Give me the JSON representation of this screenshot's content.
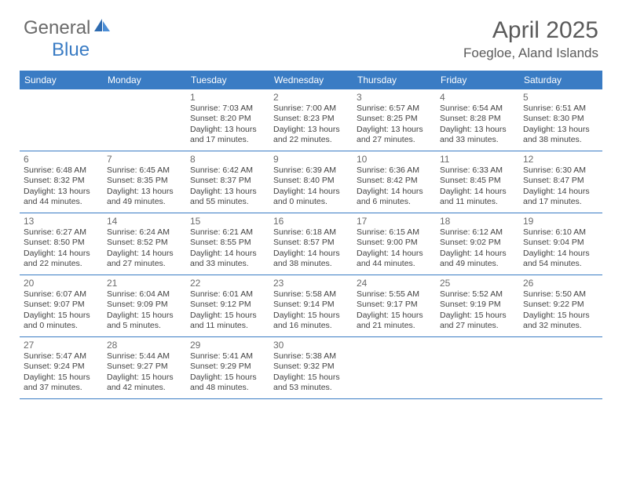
{
  "logo": {
    "brand1": "General",
    "brand2": "Blue"
  },
  "title": "April 2025",
  "location": "Foegloe, Aland Islands",
  "colors": {
    "header_bg": "#3a7cc4",
    "header_text": "#ffffff",
    "divider": "#3a7cc4",
    "daynum": "#6a6a6a",
    "body_text": "#424242",
    "brand_gray": "#6a6a6a",
    "brand_blue": "#3a7cc4"
  },
  "daynames": [
    "Sunday",
    "Monday",
    "Tuesday",
    "Wednesday",
    "Thursday",
    "Friday",
    "Saturday"
  ],
  "weeks": [
    [
      null,
      null,
      {
        "n": "1",
        "sr": "Sunrise: 7:03 AM",
        "ss": "Sunset: 8:20 PM",
        "dl": "Daylight: 13 hours and 17 minutes."
      },
      {
        "n": "2",
        "sr": "Sunrise: 7:00 AM",
        "ss": "Sunset: 8:23 PM",
        "dl": "Daylight: 13 hours and 22 minutes."
      },
      {
        "n": "3",
        "sr": "Sunrise: 6:57 AM",
        "ss": "Sunset: 8:25 PM",
        "dl": "Daylight: 13 hours and 27 minutes."
      },
      {
        "n": "4",
        "sr": "Sunrise: 6:54 AM",
        "ss": "Sunset: 8:28 PM",
        "dl": "Daylight: 13 hours and 33 minutes."
      },
      {
        "n": "5",
        "sr": "Sunrise: 6:51 AM",
        "ss": "Sunset: 8:30 PM",
        "dl": "Daylight: 13 hours and 38 minutes."
      }
    ],
    [
      {
        "n": "6",
        "sr": "Sunrise: 6:48 AM",
        "ss": "Sunset: 8:32 PM",
        "dl": "Daylight: 13 hours and 44 minutes."
      },
      {
        "n": "7",
        "sr": "Sunrise: 6:45 AM",
        "ss": "Sunset: 8:35 PM",
        "dl": "Daylight: 13 hours and 49 minutes."
      },
      {
        "n": "8",
        "sr": "Sunrise: 6:42 AM",
        "ss": "Sunset: 8:37 PM",
        "dl": "Daylight: 13 hours and 55 minutes."
      },
      {
        "n": "9",
        "sr": "Sunrise: 6:39 AM",
        "ss": "Sunset: 8:40 PM",
        "dl": "Daylight: 14 hours and 0 minutes."
      },
      {
        "n": "10",
        "sr": "Sunrise: 6:36 AM",
        "ss": "Sunset: 8:42 PM",
        "dl": "Daylight: 14 hours and 6 minutes."
      },
      {
        "n": "11",
        "sr": "Sunrise: 6:33 AM",
        "ss": "Sunset: 8:45 PM",
        "dl": "Daylight: 14 hours and 11 minutes."
      },
      {
        "n": "12",
        "sr": "Sunrise: 6:30 AM",
        "ss": "Sunset: 8:47 PM",
        "dl": "Daylight: 14 hours and 17 minutes."
      }
    ],
    [
      {
        "n": "13",
        "sr": "Sunrise: 6:27 AM",
        "ss": "Sunset: 8:50 PM",
        "dl": "Daylight: 14 hours and 22 minutes."
      },
      {
        "n": "14",
        "sr": "Sunrise: 6:24 AM",
        "ss": "Sunset: 8:52 PM",
        "dl": "Daylight: 14 hours and 27 minutes."
      },
      {
        "n": "15",
        "sr": "Sunrise: 6:21 AM",
        "ss": "Sunset: 8:55 PM",
        "dl": "Daylight: 14 hours and 33 minutes."
      },
      {
        "n": "16",
        "sr": "Sunrise: 6:18 AM",
        "ss": "Sunset: 8:57 PM",
        "dl": "Daylight: 14 hours and 38 minutes."
      },
      {
        "n": "17",
        "sr": "Sunrise: 6:15 AM",
        "ss": "Sunset: 9:00 PM",
        "dl": "Daylight: 14 hours and 44 minutes."
      },
      {
        "n": "18",
        "sr": "Sunrise: 6:12 AM",
        "ss": "Sunset: 9:02 PM",
        "dl": "Daylight: 14 hours and 49 minutes."
      },
      {
        "n": "19",
        "sr": "Sunrise: 6:10 AM",
        "ss": "Sunset: 9:04 PM",
        "dl": "Daylight: 14 hours and 54 minutes."
      }
    ],
    [
      {
        "n": "20",
        "sr": "Sunrise: 6:07 AM",
        "ss": "Sunset: 9:07 PM",
        "dl": "Daylight: 15 hours and 0 minutes."
      },
      {
        "n": "21",
        "sr": "Sunrise: 6:04 AM",
        "ss": "Sunset: 9:09 PM",
        "dl": "Daylight: 15 hours and 5 minutes."
      },
      {
        "n": "22",
        "sr": "Sunrise: 6:01 AM",
        "ss": "Sunset: 9:12 PM",
        "dl": "Daylight: 15 hours and 11 minutes."
      },
      {
        "n": "23",
        "sr": "Sunrise: 5:58 AM",
        "ss": "Sunset: 9:14 PM",
        "dl": "Daylight: 15 hours and 16 minutes."
      },
      {
        "n": "24",
        "sr": "Sunrise: 5:55 AM",
        "ss": "Sunset: 9:17 PM",
        "dl": "Daylight: 15 hours and 21 minutes."
      },
      {
        "n": "25",
        "sr": "Sunrise: 5:52 AM",
        "ss": "Sunset: 9:19 PM",
        "dl": "Daylight: 15 hours and 27 minutes."
      },
      {
        "n": "26",
        "sr": "Sunrise: 5:50 AM",
        "ss": "Sunset: 9:22 PM",
        "dl": "Daylight: 15 hours and 32 minutes."
      }
    ],
    [
      {
        "n": "27",
        "sr": "Sunrise: 5:47 AM",
        "ss": "Sunset: 9:24 PM",
        "dl": "Daylight: 15 hours and 37 minutes."
      },
      {
        "n": "28",
        "sr": "Sunrise: 5:44 AM",
        "ss": "Sunset: 9:27 PM",
        "dl": "Daylight: 15 hours and 42 minutes."
      },
      {
        "n": "29",
        "sr": "Sunrise: 5:41 AM",
        "ss": "Sunset: 9:29 PM",
        "dl": "Daylight: 15 hours and 48 minutes."
      },
      {
        "n": "30",
        "sr": "Sunrise: 5:38 AM",
        "ss": "Sunset: 9:32 PM",
        "dl": "Daylight: 15 hours and 53 minutes."
      },
      null,
      null,
      null
    ]
  ]
}
